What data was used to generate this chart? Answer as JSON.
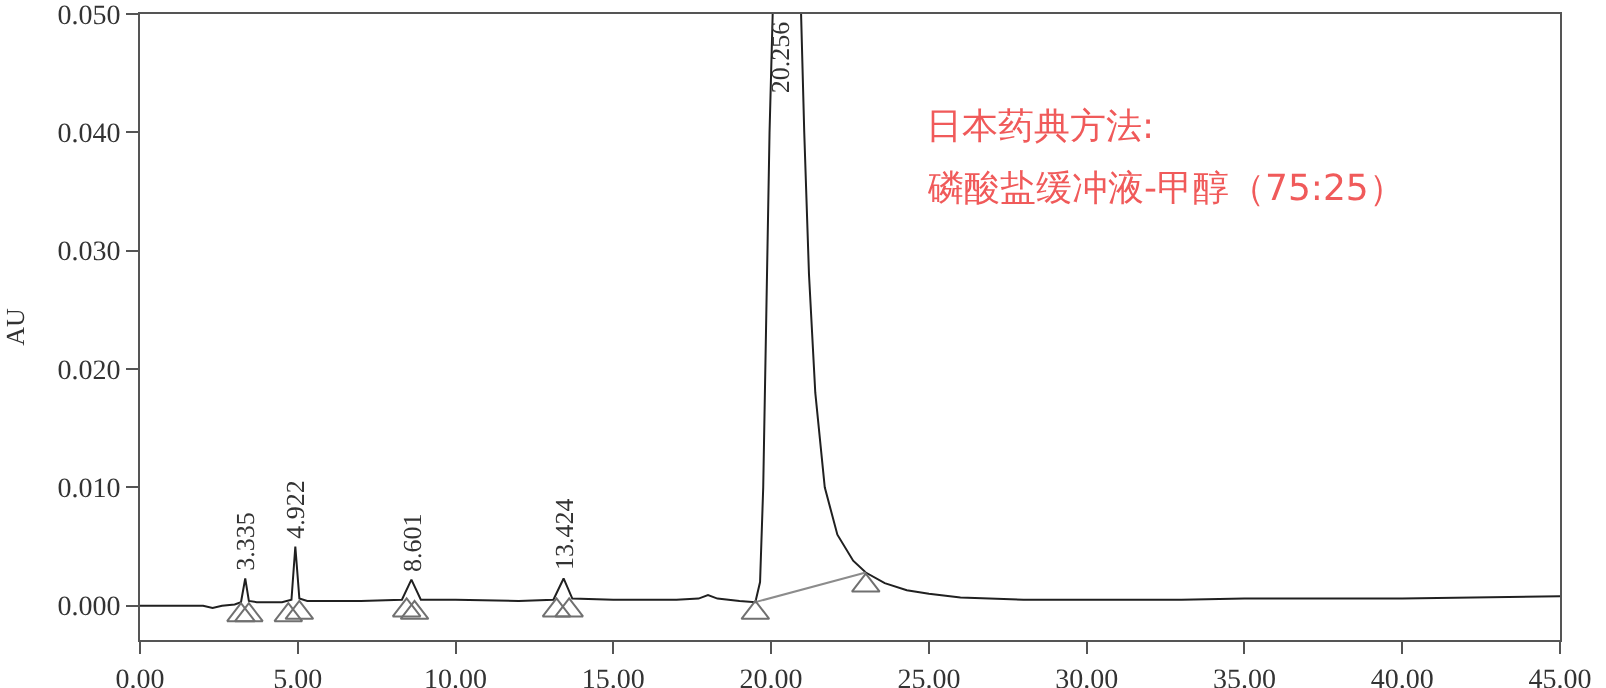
{
  "chart_data": {
    "type": "line",
    "ylabel": "AU",
    "xlim": [
      0,
      45
    ],
    "ylim": [
      -0.0029,
      0.05
    ],
    "xticks": [
      {
        "value": 0,
        "label": "0.00"
      },
      {
        "value": 5,
        "label": "5.00"
      },
      {
        "value": 10,
        "label": "10.00"
      },
      {
        "value": 15,
        "label": "15.00"
      },
      {
        "value": 20,
        "label": "20.00"
      },
      {
        "value": 25,
        "label": "25.00"
      },
      {
        "value": 30,
        "label": "30.00"
      },
      {
        "value": 35,
        "label": "35.00"
      },
      {
        "value": 40,
        "label": "40.00"
      },
      {
        "value": 45,
        "label": "45.00"
      }
    ],
    "yticks": [
      {
        "value": 0,
        "label": "0.000"
      },
      {
        "value": 0.01,
        "label": "0.010"
      },
      {
        "value": 0.02,
        "label": "0.020"
      },
      {
        "value": 0.03,
        "label": "0.030"
      },
      {
        "value": 0.04,
        "label": "0.040"
      },
      {
        "value": 0.05,
        "label": "0.050"
      }
    ],
    "marker": "none",
    "line_style": "solid",
    "series": [
      {
        "color": "#202020",
        "x": [
          0,
          1,
          2,
          2.3,
          2.6,
          3.0,
          3.2,
          3.335,
          3.45,
          3.7,
          4.5,
          4.8,
          4.922,
          5.05,
          5.3,
          7,
          8.3,
          8.601,
          8.9,
          10,
          12,
          13.1,
          13.424,
          13.7,
          15,
          17,
          17.7,
          18.0,
          18.3,
          19.0,
          19.5,
          19.65,
          19.75,
          19.85,
          19.95,
          20.05,
          20.256,
          20.95,
          21.05,
          21.2,
          21.4,
          21.7,
          22.1,
          22.6,
          23.0,
          23.6,
          24.3,
          25.0,
          26.0,
          28.0,
          30.0,
          33.0,
          35.0,
          36.0,
          40.0,
          45.0
        ],
        "values": [
          0.0,
          0.0,
          0.0,
          -0.0002,
          0.0,
          0.0001,
          0.0003,
          0.0023,
          0.0004,
          0.0003,
          0.0003,
          0.0005,
          0.005,
          0.0006,
          0.0004,
          0.0004,
          0.0005,
          0.0022,
          0.0005,
          0.0005,
          0.0004,
          0.0005,
          0.0023,
          0.0006,
          0.0005,
          0.0005,
          0.0006,
          0.0009,
          0.0006,
          0.0004,
          0.0003,
          0.002,
          0.01,
          0.025,
          0.04,
          0.05,
          null,
          0.05,
          0.04,
          0.028,
          0.018,
          0.01,
          0.006,
          0.0038,
          0.0028,
          0.0019,
          0.0013,
          0.001,
          0.0007,
          0.0005,
          0.0005,
          0.0005,
          0.0006,
          0.0006,
          0.0006,
          0.0008
        ]
      },
      {
        "color": "#8c8c8c",
        "x": [
          19.5,
          23.0
        ],
        "values": [
          0.0003,
          0.0028
        ]
      },
      {
        "type": "scatter",
        "marker": "triangle",
        "color": "#707070",
        "x": [
          3.2,
          3.45,
          4.7,
          5.05,
          8.45,
          8.7,
          13.2,
          13.6,
          19.5,
          23.0
        ],
        "values": [
          -0.0008,
          -0.0008,
          -0.0008,
          -0.0006,
          -0.0004,
          -0.0006,
          -0.0004,
          -0.0004,
          -0.0006,
          0.0017
        ]
      }
    ],
    "annotations": [
      {
        "text": "3.335",
        "x": 3.335,
        "y": 0.0023
      },
      {
        "text": "4.922",
        "x": 4.922,
        "y": 0.005
      },
      {
        "text": "8.601",
        "x": 8.601,
        "y": 0.0022
      },
      {
        "text": "13.424",
        "x": 13.424,
        "y": 0.0023
      },
      {
        "text": "20.256",
        "x": 20.256,
        "y": 0.05
      },
      "日本药典方法:",
      "磷酸盐缓冲液-甲醇（75:25）"
    ]
  }
}
